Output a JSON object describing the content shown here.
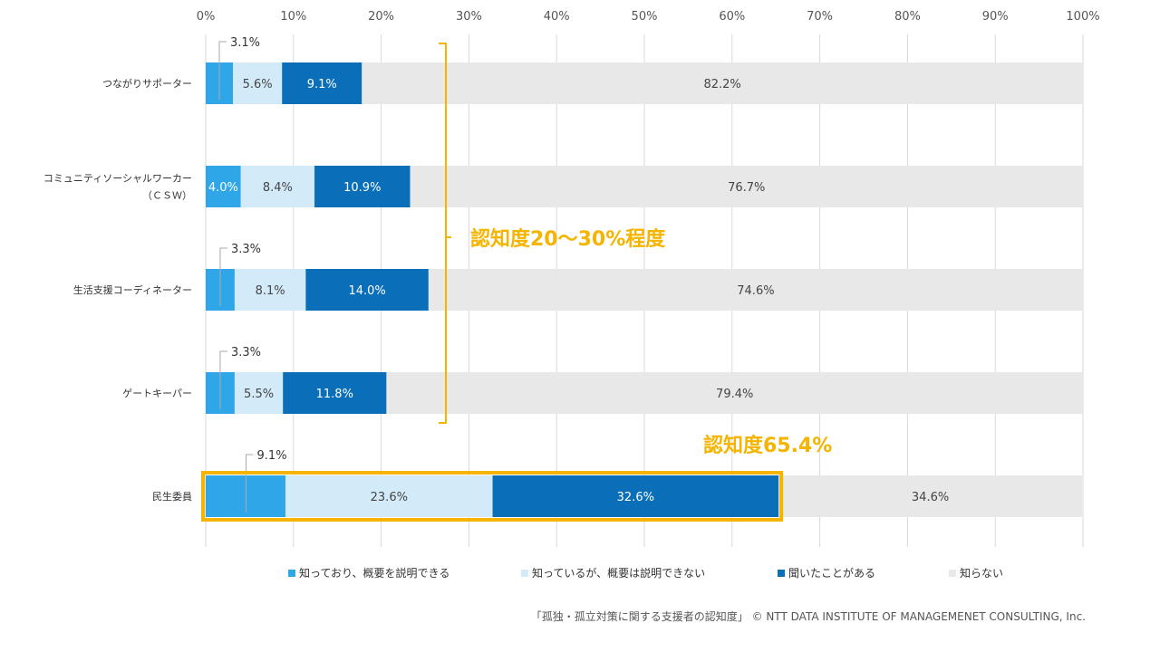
{
  "chart_data": {
    "type": "bar",
    "orientation": "horizontal",
    "stacked": true,
    "categories": [
      "つながりサポーター",
      "コミュニティソーシャルワーカー\n（ＣＳＷ）",
      "生活支援コーディネーター",
      "ゲートキーパー",
      "民生委員"
    ],
    "series": [
      {
        "name": "知っており、概要を説明できる",
        "color": "#2ea6e8",
        "values": [
          3.1,
          4.0,
          3.3,
          3.3,
          9.1
        ]
      },
      {
        "name": "知っているが、概要は説明できない",
        "color": "#d3ebf9",
        "values": [
          5.6,
          8.4,
          8.1,
          5.5,
          23.6
        ]
      },
      {
        "name": "聞いたことがある",
        "color": "#0a6fb8",
        "values": [
          9.1,
          10.9,
          14.0,
          11.8,
          32.6
        ]
      },
      {
        "name": "知らない",
        "color": "#e8e8e8",
        "values": [
          82.2,
          76.7,
          74.6,
          79.4,
          34.6
        ]
      }
    ],
    "value_labels": [
      [
        "3.1%",
        "5.6%",
        "9.1%",
        "82.2%"
      ],
      [
        "4.0%",
        "8.4%",
        "10.9%",
        "76.7%"
      ],
      [
        "3.3%",
        "8.1%",
        "14.0%",
        "74.6%"
      ],
      [
        "3.3%",
        "5.5%",
        "11.8%",
        "79.4%"
      ],
      [
        "9.1%",
        "23.6%",
        "32.6%",
        "34.6%"
      ]
    ],
    "xlim": [
      0,
      100
    ],
    "x_ticks": [
      "0%",
      "10%",
      "20%",
      "30%",
      "40%",
      "50%",
      "60%",
      "70%",
      "80%",
      "90%",
      "100%"
    ],
    "x_axis_position": "top",
    "grid": true,
    "legend_position": "bottom",
    "annotations": [
      {
        "text": "認知度20～30%程度",
        "color": "#f5b400",
        "bracket_categories": [
          0,
          3
        ]
      },
      {
        "text": "認知度65.4%",
        "color": "#f5b400",
        "highlight_category": 4
      }
    ]
  },
  "footer": "「孤独・孤立対策に関する支援者の認知度」 © NTT DATA INSTITUTE OF MANAGEMENET CONSULTING, Inc."
}
